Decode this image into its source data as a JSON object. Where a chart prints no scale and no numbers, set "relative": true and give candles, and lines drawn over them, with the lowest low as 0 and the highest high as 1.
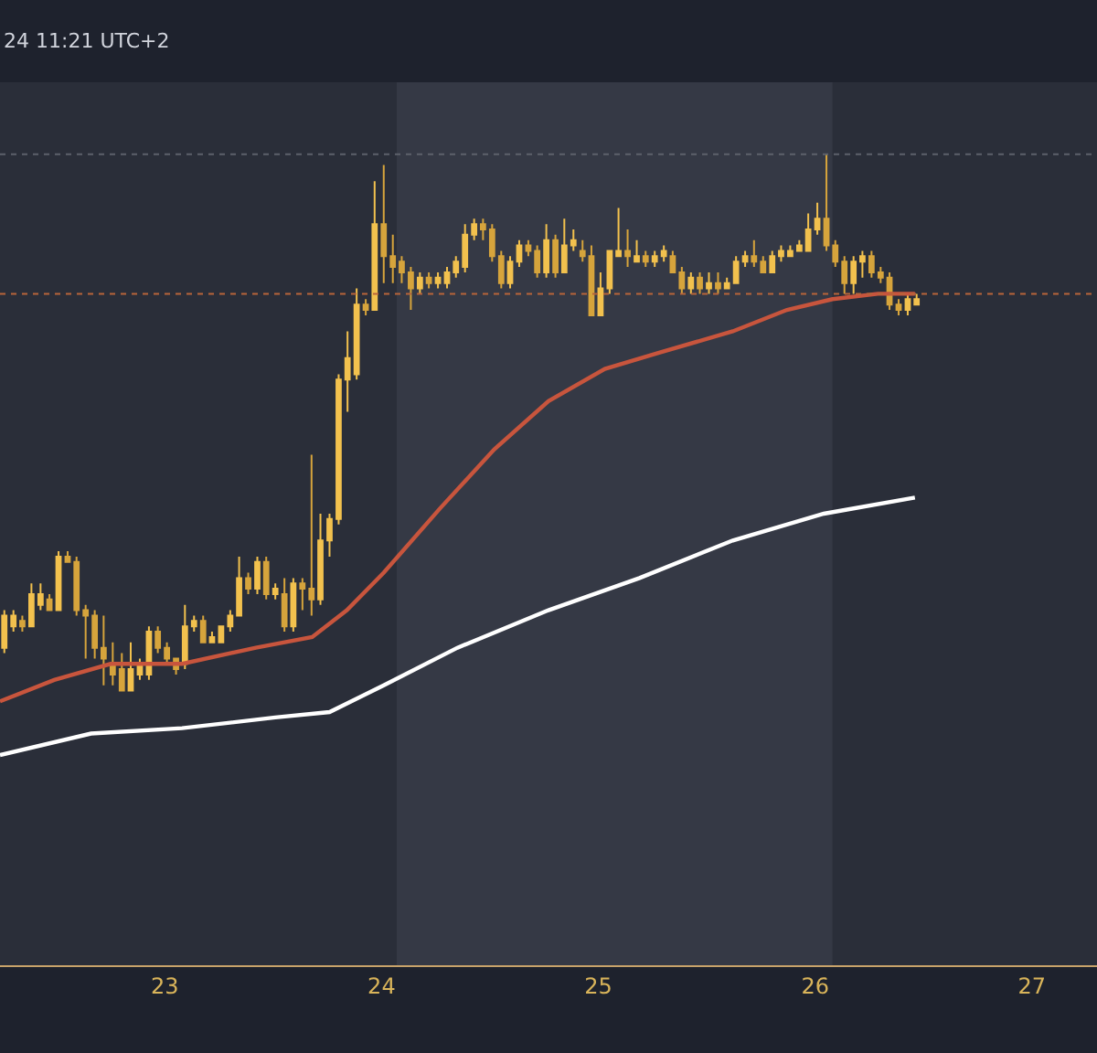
{
  "chart_data": {
    "type": "candlestick",
    "relative": true,
    "annotations": [
      "24 11:21 UTC+2"
    ],
    "xlim": [
      22.24,
      27.3
    ],
    "xticks": [
      23,
      24,
      25,
      26,
      27
    ],
    "grid": false,
    "bands": [
      {
        "axis": "x",
        "from": 24.07,
        "to": 26.08,
        "color": "#353945"
      }
    ],
    "ref_lines": [
      {
        "axis": "y",
        "value": 1.0,
        "color": "#5d616b",
        "line_style": "dotted"
      },
      {
        "axis": "y",
        "value": 0.74,
        "color": "#b8643a",
        "line_style": "dotted"
      }
    ],
    "series": [
      {
        "type": "candlestick",
        "colors": [
          "#f2c14e",
          "#f2c14e",
          "#d6a43c",
          "#f2c14e",
          "#f2c14e",
          "#d6a43c",
          "#f2c14e",
          "#d6a43c",
          "#d6a43c",
          "#d6a43c",
          "#d6a43c",
          "#d6a43c",
          "#d6a43c",
          "#d6a43c",
          "#f2c14e",
          "#f2c14e",
          "#f2c14e",
          "#d6a43c",
          "#d6a43c",
          "#d6a43c",
          "#f2c14e",
          "#f2c14e",
          "#d6a43c",
          "#f2c14e",
          "#f2c14e",
          "#f2c14e",
          "#f2c14e",
          "#d6a43c",
          "#f2c14e",
          "#d6a43c",
          "#f2c14e",
          "#d6a43c",
          "#f2c14e",
          "#d6a43c",
          "#d6a43c",
          "#f2c14e",
          "#f2c14e",
          "#f2c14e",
          "#f2c14e",
          "#f2c14e",
          "#d6a43c",
          "#f2c14e",
          "#d6a43c",
          "#d6a43c",
          "#d6a43c",
          "#d6a43c",
          "#f2c14e",
          "#d6a43c",
          "#f2c14e",
          "#f2c14e",
          "#f2c14e",
          "#f2c14e",
          "#f2c14e",
          "#d6a43c",
          "#d6a43c",
          "#d6a43c",
          "#f2c14e",
          "#f2c14e",
          "#d6a43c",
          "#d6a43c",
          "#f2c14e",
          "#d6a43c",
          "#f2c14e",
          "#f2c14e",
          "#d6a43c",
          "#d6a43c",
          "#f2c14e",
          "#f2c14e",
          "#f2c14e",
          "#d6a43c",
          "#f2c14e",
          "#d6a43c",
          "#f2c14e",
          "#f2c14e",
          "#d6a43c",
          "#d6a43c",
          "#f2c14e",
          "#d6a43c",
          "#f2c14e",
          "#d6a43c",
          "#f2c14e",
          "#f2c14e",
          "#f2c14e",
          "#d6a43c",
          "#d6a43c",
          "#f2c14e",
          "#f2c14e",
          "#f2c14e",
          "#f2c14e",
          "#f2c14e",
          "#f2c14e",
          "#d6a43c",
          "#d6a43c",
          "#d6a43c",
          "#f2c14e",
          "#f2c14e",
          "#d6a43c",
          "#d6a43c",
          "#d6a43c",
          "#d6a43c",
          "#f2c14e",
          "#f2c14e"
        ],
        "x": [
          22.26,
          22.302,
          22.343,
          22.385,
          22.427,
          22.468,
          22.51,
          22.552,
          22.593,
          22.635,
          22.677,
          22.718,
          22.76,
          22.802,
          22.843,
          22.885,
          22.927,
          22.968,
          23.01,
          23.052,
          23.093,
          23.135,
          23.177,
          23.218,
          23.26,
          23.302,
          23.343,
          23.385,
          23.427,
          23.468,
          23.51,
          23.552,
          23.593,
          23.635,
          23.677,
          23.718,
          23.76,
          23.802,
          23.843,
          23.885,
          23.927,
          23.968,
          24.01,
          24.052,
          24.093,
          24.135,
          24.177,
          24.218,
          24.26,
          24.302,
          24.343,
          24.385,
          24.427,
          24.468,
          24.51,
          24.552,
          24.593,
          24.635,
          24.677,
          24.718,
          24.76,
          24.802,
          24.843,
          24.885,
          24.927,
          24.968,
          25.01,
          25.052,
          25.093,
          25.135,
          25.177,
          25.218,
          25.26,
          25.302,
          25.343,
          25.385,
          25.427,
          25.468,
          25.51,
          25.552,
          25.593,
          25.635,
          25.677,
          25.718,
          25.76,
          25.802,
          25.843,
          25.885,
          25.927,
          25.968,
          26.01,
          26.052,
          26.093,
          26.135,
          26.177,
          26.218,
          26.26,
          26.302,
          26.343,
          26.385,
          26.427,
          26.468
        ],
        "ohlc": [
          [
            0.08,
            0.15,
            0.07,
            0.14
          ],
          [
            0.12,
            0.15,
            0.11,
            0.14
          ],
          [
            0.13,
            0.14,
            0.11,
            0.12
          ],
          [
            0.12,
            0.2,
            0.12,
            0.18
          ],
          [
            0.16,
            0.2,
            0.15,
            0.18
          ],
          [
            0.17,
            0.18,
            0.15,
            0.15
          ],
          [
            0.15,
            0.26,
            0.15,
            0.25
          ],
          [
            0.25,
            0.26,
            0.24,
            0.24
          ],
          [
            0.24,
            0.25,
            0.14,
            0.15
          ],
          [
            0.15,
            0.16,
            0.06,
            0.14
          ],
          [
            0.14,
            0.15,
            0.06,
            0.08
          ],
          [
            0.08,
            0.14,
            0.01,
            0.06
          ],
          [
            0.05,
            0.09,
            0.01,
            0.03
          ],
          [
            0.04,
            0.07,
            0.0,
            0.0
          ],
          [
            0.0,
            0.09,
            0.0,
            0.04
          ],
          [
            0.03,
            0.06,
            0.02,
            0.05
          ],
          [
            0.03,
            0.12,
            0.02,
            0.11
          ],
          [
            0.11,
            0.12,
            0.07,
            0.08
          ],
          [
            0.08,
            0.09,
            0.05,
            0.06
          ],
          [
            0.06,
            0.06,
            0.03,
            0.04
          ],
          [
            0.05,
            0.16,
            0.04,
            0.12
          ],
          [
            0.12,
            0.14,
            0.11,
            0.13
          ],
          [
            0.13,
            0.14,
            0.09,
            0.09
          ],
          [
            0.09,
            0.11,
            0.09,
            0.1
          ],
          [
            0.09,
            0.12,
            0.09,
            0.12
          ],
          [
            0.12,
            0.15,
            0.11,
            0.14
          ],
          [
            0.14,
            0.25,
            0.14,
            0.21
          ],
          [
            0.21,
            0.22,
            0.18,
            0.19
          ],
          [
            0.19,
            0.25,
            0.18,
            0.24
          ],
          [
            0.24,
            0.25,
            0.17,
            0.18
          ],
          [
            0.18,
            0.2,
            0.17,
            0.19
          ],
          [
            0.18,
            0.21,
            0.11,
            0.12
          ],
          [
            0.12,
            0.21,
            0.11,
            0.2
          ],
          [
            0.2,
            0.21,
            0.15,
            0.19
          ],
          [
            0.19,
            0.44,
            0.14,
            0.17
          ],
          [
            0.17,
            0.33,
            0.16,
            0.28
          ],
          [
            0.28,
            0.33,
            0.25,
            0.32
          ],
          [
            0.32,
            0.59,
            0.31,
            0.58
          ],
          [
            0.58,
            0.67,
            0.52,
            0.62
          ],
          [
            0.59,
            0.75,
            0.58,
            0.72
          ],
          [
            0.72,
            0.73,
            0.7,
            0.71
          ],
          [
            0.71,
            0.95,
            0.71,
            0.87
          ],
          [
            0.87,
            0.98,
            0.76,
            0.81
          ],
          [
            0.81,
            0.85,
            0.76,
            0.79
          ],
          [
            0.8,
            0.81,
            0.76,
            0.78
          ],
          [
            0.78,
            0.79,
            0.71,
            0.75
          ],
          [
            0.75,
            0.78,
            0.74,
            0.77
          ],
          [
            0.77,
            0.78,
            0.75,
            0.76
          ],
          [
            0.76,
            0.78,
            0.75,
            0.77
          ],
          [
            0.76,
            0.79,
            0.75,
            0.78
          ],
          [
            0.78,
            0.81,
            0.77,
            0.8
          ],
          [
            0.79,
            0.87,
            0.78,
            0.85
          ],
          [
            0.85,
            0.88,
            0.84,
            0.87
          ],
          [
            0.87,
            0.88,
            0.84,
            0.86
          ],
          [
            0.86,
            0.87,
            0.8,
            0.81
          ],
          [
            0.81,
            0.82,
            0.75,
            0.76
          ],
          [
            0.76,
            0.81,
            0.75,
            0.8
          ],
          [
            0.8,
            0.84,
            0.79,
            0.83
          ],
          [
            0.83,
            0.84,
            0.81,
            0.82
          ],
          [
            0.82,
            0.83,
            0.77,
            0.78
          ],
          [
            0.78,
            0.87,
            0.77,
            0.84
          ],
          [
            0.84,
            0.85,
            0.77,
            0.78
          ],
          [
            0.78,
            0.88,
            0.78,
            0.83
          ],
          [
            0.83,
            0.86,
            0.82,
            0.84
          ],
          [
            0.82,
            0.84,
            0.8,
            0.81
          ],
          [
            0.81,
            0.83,
            0.7,
            0.7
          ],
          [
            0.7,
            0.78,
            0.7,
            0.75
          ],
          [
            0.75,
            0.82,
            0.74,
            0.82
          ],
          [
            0.81,
            0.9,
            0.81,
            0.82
          ],
          [
            0.82,
            0.86,
            0.79,
            0.81
          ],
          [
            0.8,
            0.84,
            0.8,
            0.81
          ],
          [
            0.81,
            0.82,
            0.79,
            0.8
          ],
          [
            0.8,
            0.82,
            0.79,
            0.81
          ],
          [
            0.81,
            0.83,
            0.8,
            0.82
          ],
          [
            0.81,
            0.82,
            0.78,
            0.78
          ],
          [
            0.78,
            0.79,
            0.74,
            0.75
          ],
          [
            0.75,
            0.78,
            0.74,
            0.77
          ],
          [
            0.77,
            0.78,
            0.74,
            0.75
          ],
          [
            0.75,
            0.78,
            0.74,
            0.76
          ],
          [
            0.76,
            0.78,
            0.74,
            0.75
          ],
          [
            0.75,
            0.77,
            0.75,
            0.76
          ],
          [
            0.76,
            0.81,
            0.76,
            0.8
          ],
          [
            0.8,
            0.82,
            0.79,
            0.81
          ],
          [
            0.81,
            0.84,
            0.79,
            0.8
          ],
          [
            0.8,
            0.81,
            0.78,
            0.78
          ],
          [
            0.78,
            0.82,
            0.78,
            0.81
          ],
          [
            0.81,
            0.83,
            0.8,
            0.82
          ],
          [
            0.81,
            0.83,
            0.81,
            0.82
          ],
          [
            0.82,
            0.84,
            0.82,
            0.83
          ],
          [
            0.82,
            0.89,
            0.82,
            0.86
          ],
          [
            0.86,
            0.91,
            0.85,
            0.88
          ],
          [
            0.88,
            1.0,
            0.82,
            0.83
          ],
          [
            0.83,
            0.84,
            0.79,
            0.8
          ],
          [
            0.8,
            0.81,
            0.74,
            0.76
          ],
          [
            0.76,
            0.81,
            0.74,
            0.8
          ],
          [
            0.8,
            0.82,
            0.77,
            0.81
          ],
          [
            0.81,
            0.82,
            0.77,
            0.78
          ],
          [
            0.78,
            0.79,
            0.76,
            0.77
          ],
          [
            0.77,
            0.78,
            0.71,
            0.72
          ],
          [
            0.72,
            0.73,
            0.7,
            0.71
          ],
          [
            0.71,
            0.74,
            0.7,
            0.73
          ],
          [
            0.72,
            0.74,
            0.72,
            0.73
          ]
        ]
      },
      {
        "type": "line",
        "color": "#c8553d",
        "x": [
          22.24,
          22.49,
          22.75,
          23.08,
          23.42,
          23.68,
          23.84,
          24.01,
          24.27,
          24.52,
          24.77,
          25.03,
          25.28,
          25.62,
          25.87,
          26.08,
          26.29,
          26.46
        ],
        "values": [
          -0.02,
          0.02,
          0.05,
          0.05,
          0.08,
          0.1,
          0.15,
          0.22,
          0.34,
          0.45,
          0.54,
          0.6,
          0.63,
          0.67,
          0.71,
          0.73,
          0.74,
          0.74
        ]
      },
      {
        "type": "line",
        "color": "#ffffff",
        "x": [
          22.24,
          22.66,
          23.08,
          23.51,
          23.76,
          24.01,
          24.35,
          24.77,
          25.19,
          25.62,
          26.04,
          26.46
        ],
        "values": [
          -0.12,
          -0.08,
          -0.07,
          -0.05,
          -0.04,
          0.01,
          0.08,
          0.15,
          0.21,
          0.28,
          0.33,
          0.36
        ]
      }
    ]
  }
}
